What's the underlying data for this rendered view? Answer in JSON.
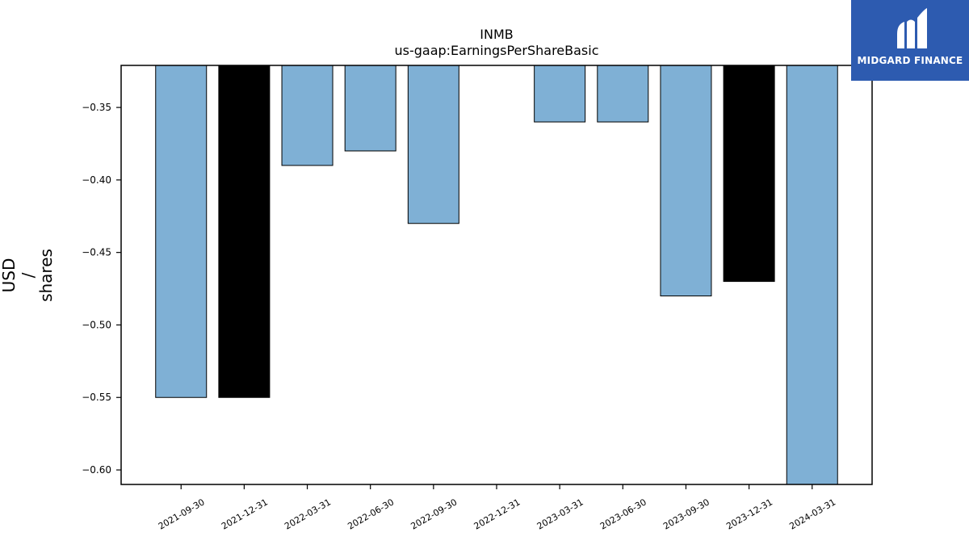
{
  "chart_data": {
    "type": "bar",
    "title": "INMB",
    "subtitle": "us-gaap:EarningsPerShareBasic",
    "ylabel": [
      "USD",
      "/",
      "shares"
    ],
    "xlabel": "",
    "categories": [
      "2021-09-30",
      "2021-12-31",
      "2022-03-31",
      "2022-06-30",
      "2022-09-30",
      "2022-12-31",
      "2023-03-31",
      "2023-06-30",
      "2023-09-30",
      "2023-12-31",
      "2024-03-31"
    ],
    "values": [
      -0.55,
      -0.55,
      -0.39,
      -0.38,
      -0.43,
      null,
      -0.36,
      -0.36,
      -0.48,
      -0.47,
      -0.61
    ],
    "highlighted": [
      false,
      true,
      false,
      false,
      false,
      false,
      false,
      false,
      false,
      true,
      false
    ],
    "ylim": [
      -0.61,
      -0.321
    ],
    "yticks": [
      -0.35,
      -0.4,
      -0.45,
      -0.5,
      -0.55,
      -0.6
    ],
    "ytick_labels": [
      "−0.35",
      "−0.40",
      "−0.45",
      "−0.50",
      "−0.55",
      "−0.60"
    ],
    "grid": false,
    "colors": {
      "bar": "#7fb0d5",
      "bar_highlight": "#000000",
      "edge": "#000000",
      "axis": "#000000"
    }
  },
  "logo": {
    "text": "MIDGARD FINANCE",
    "icon": "midgard-logo-icon",
    "background": "#2d5bb0"
  }
}
